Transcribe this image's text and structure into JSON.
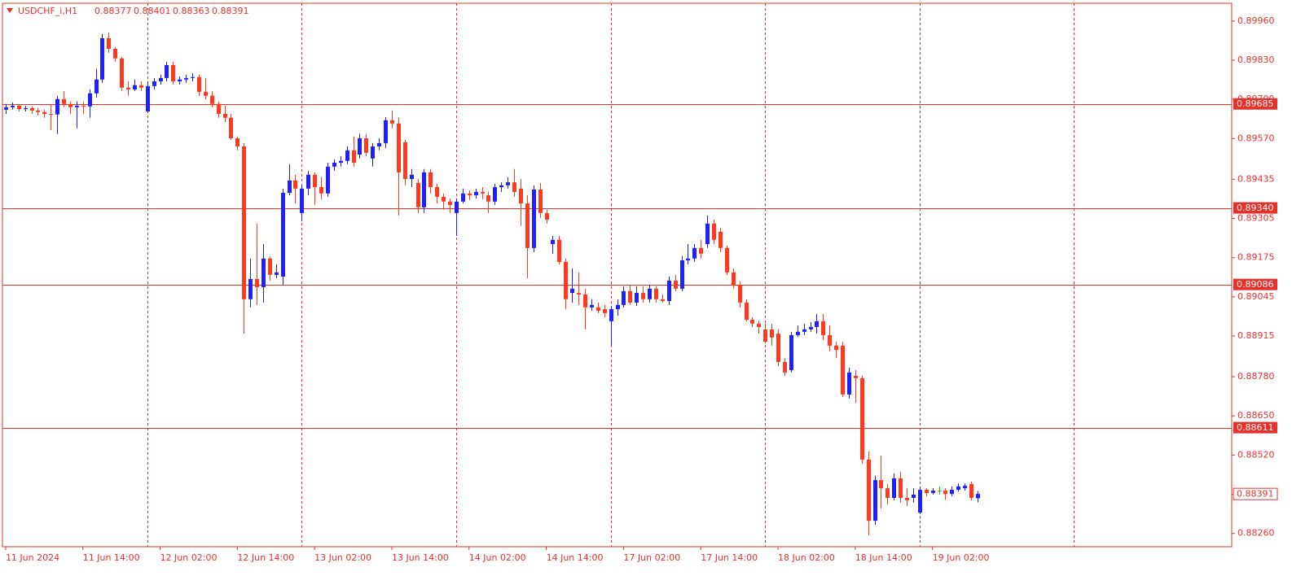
{
  "chart_data": {
    "type": "candlestick",
    "title": "USDCHF_i,H1",
    "up_color": "#1f1fff",
    "down_color": "#ff3a1f",
    "doji_color": "#1fbf1f",
    "level_color": "#e8302a",
    "axis_color": "#e8302a",
    "grid": true,
    "xlim": [
      -0.5,
      190.5
    ],
    "ylim": [
      0.88216,
      0.90019
    ],
    "xticks": [
      {
        "value": 0,
        "label": "11 Jun 2024"
      },
      {
        "value": 12,
        "label": "11 Jun 14:00"
      },
      {
        "value": 24,
        "label": "12 Jun 02:00"
      },
      {
        "value": 36,
        "label": "12 Jun 14:00"
      },
      {
        "value": 48,
        "label": "13 Jun 02:00"
      },
      {
        "value": 60,
        "label": "13 Jun 14:00"
      },
      {
        "value": 72,
        "label": "14 Jun 02:00"
      },
      {
        "value": 84,
        "label": "14 Jun 14:00"
      },
      {
        "value": 96,
        "label": "17 Jun 02:00"
      },
      {
        "value": 108,
        "label": "17 Jun 14:00"
      },
      {
        "value": 120,
        "label": "18 Jun 02:00"
      },
      {
        "value": 132,
        "label": "18 Jun 14:00"
      },
      {
        "value": 144,
        "label": "19 Jun 02:00"
      }
    ],
    "xgrid": [
      22,
      46,
      70,
      94,
      118,
      142,
      166
    ],
    "yticks": [
      {
        "value": 0.8996,
        "label": "0.89960"
      },
      {
        "value": 0.8983,
        "label": "0.89830"
      },
      {
        "value": 0.897,
        "label": "0.89700"
      },
      {
        "value": 0.8957,
        "label": "0.89570"
      },
      0.89435,
      0.89305,
      0.89175,
      0.89045,
      0.88915,
      {
        "value": 0.8878,
        "label": "0.88780"
      },
      {
        "value": 0.8865,
        "label": "0.88650"
      },
      {
        "value": 0.8852,
        "label": "0.88520"
      },
      {
        "value": 0.8839,
        "label": "0.88390"
      },
      {
        "value": 0.8826,
        "label": "0.88260"
      }
    ],
    "levels": [
      0.89685,
      {
        "value": 0.8934,
        "label": "0.89340"
      },
      0.89086,
      0.88611
    ],
    "ohlc": [
      [
        0.89666,
        0.89685,
        0.89652,
        0.89674
      ],
      [
        0.89674,
        0.8969,
        0.89666,
        0.89679
      ],
      [
        0.89679,
        0.89685,
        0.8966,
        0.89668
      ],
      [
        0.89668,
        0.89679,
        0.8966,
        0.89671
      ],
      [
        0.89671,
        0.89677,
        0.89652,
        0.89663
      ],
      [
        0.89663,
        0.89671,
        0.89647,
        0.89658
      ],
      [
        0.89658,
        0.89666,
        0.89639,
        0.89652
      ],
      [
        0.89652,
        0.89685,
        0.89598,
        0.8965
      ],
      [
        0.8965,
        0.89712,
        0.89585,
        0.89701
      ],
      [
        0.89701,
        0.89728,
        0.89674,
        0.89685
      ],
      [
        0.89685,
        0.89693,
        0.89652,
        0.89674
      ],
      [
        0.89674,
        0.89693,
        0.89604,
        0.89679
      ],
      [
        0.89679,
        0.89693,
        0.89652,
        0.89677
      ],
      [
        0.89677,
        0.89733,
        0.89639,
        0.8972
      ],
      [
        0.8972,
        0.89801,
        0.89706,
        0.89766
      ],
      [
        0.89766,
        0.89917,
        0.89755,
        0.89903
      ],
      [
        0.89903,
        0.89922,
        0.89855,
        0.89868
      ],
      [
        0.89868,
        0.89874,
        0.89825,
        0.89836
      ],
      [
        0.89836,
        0.89841,
        0.89728,
        0.89739
      ],
      [
        0.89739,
        0.8976,
        0.89712,
        0.89733
      ],
      [
        0.89733,
        0.89766,
        0.89728,
        0.89747
      ],
      [
        0.89747,
        0.8976,
        0.89728,
        0.89739
      ],
      [
        0.8966,
        0.8976,
        0.89658,
        0.89744
      ],
      [
        0.89744,
        0.89771,
        0.89733,
        0.8976
      ],
      [
        0.8976,
        0.89782,
        0.89749,
        0.89771
      ],
      [
        0.89771,
        0.89825,
        0.8976,
        0.89814
      ],
      [
        0.89814,
        0.89825,
        0.89749,
        0.8976
      ],
      [
        0.8976,
        0.89776,
        0.89749,
        0.89766
      ],
      [
        0.89766,
        0.89782,
        0.89755,
        0.89771
      ],
      [
        0.89771,
        0.89787,
        0.8976,
        0.89774
      ],
      [
        0.89774,
        0.89782,
        0.89712,
        0.89725
      ],
      [
        0.89725,
        0.89771,
        0.89701,
        0.89712
      ],
      [
        0.89712,
        0.89728,
        0.89674,
        0.89685
      ],
      [
        0.89685,
        0.89693,
        0.89639,
        0.89652
      ],
      [
        0.89652,
        0.89679,
        0.89625,
        0.89639
      ],
      [
        0.89639,
        0.89652,
        0.89566,
        0.89571
      ],
      [
        0.89571,
        0.89577,
        0.89531,
        0.89544
      ],
      [
        0.89544,
        0.89555,
        0.88923,
        0.89037
      ],
      [
        0.89037,
        0.89172,
        0.8901,
        0.89104
      ],
      [
        0.89104,
        0.89288,
        0.89018,
        0.89077
      ],
      [
        0.89077,
        0.8922,
        0.89026,
        0.89172
      ],
      [
        0.89172,
        0.8918,
        0.89099,
        0.89118
      ],
      [
        0.89118,
        0.89153,
        0.89107,
        0.89126
      ],
      [
        0.89112,
        0.89404,
        0.89085,
        0.8939
      ],
      [
        0.8939,
        0.89485,
        0.89382,
        0.89431
      ],
      [
        0.89431,
        0.8945,
        0.89355,
        0.89404
      ],
      [
        0.89323,
        0.89415,
        0.89296,
        0.89404
      ],
      [
        0.89404,
        0.89463,
        0.89382,
        0.8945
      ],
      [
        0.8945,
        0.89458,
        0.8935,
        0.89409
      ],
      [
        0.89409,
        0.89442,
        0.89369,
        0.89388
      ],
      [
        0.89388,
        0.8949,
        0.89377,
        0.89477
      ],
      [
        0.89477,
        0.89501,
        0.89463,
        0.8949
      ],
      [
        0.8949,
        0.89512,
        0.89477,
        0.89496
      ],
      [
        0.89496,
        0.89544,
        0.89485,
        0.89531
      ],
      [
        0.89531,
        0.89577,
        0.89477,
        0.8949
      ],
      [
        0.89517,
        0.89585,
        0.89504,
        0.89571
      ],
      [
        0.89571,
        0.89585,
        0.89512,
        0.89523
      ],
      [
        0.89504,
        0.89555,
        0.89477,
        0.89544
      ],
      [
        0.89544,
        0.89571,
        0.89531,
        0.89555
      ],
      [
        0.89555,
        0.89641,
        0.89539,
        0.89631
      ],
      [
        0.89631,
        0.89663,
        0.89604,
        0.8962
      ],
      [
        0.8962,
        0.89639,
        0.89315,
        0.89458
      ],
      [
        0.89558,
        0.89566,
        0.89415,
        0.89436
      ],
      [
        0.89436,
        0.89469,
        0.89409,
        0.8945
      ],
      [
        0.89423,
        0.89436,
        0.89323,
        0.89342
      ],
      [
        0.89342,
        0.89469,
        0.89323,
        0.89458
      ],
      [
        0.89458,
        0.89469,
        0.89388,
        0.89409
      ],
      [
        0.89409,
        0.8942,
        0.89355,
        0.89377
      ],
      [
        0.89377,
        0.89388,
        0.89334,
        0.89361
      ],
      [
        0.89361,
        0.89371,
        0.89323,
        0.8935
      ],
      [
        0.89323,
        0.89371,
        0.89247,
        0.89361
      ],
      [
        0.89361,
        0.89404,
        0.89355,
        0.89388
      ],
      [
        0.89388,
        0.89398,
        0.89366,
        0.89382
      ],
      [
        0.89382,
        0.89404,
        0.89371,
        0.89393
      ],
      [
        0.89393,
        0.89409,
        0.89369,
        0.89388
      ],
      [
        0.89382,
        0.89393,
        0.89323,
        0.89361
      ],
      [
        0.89361,
        0.8942,
        0.8935,
        0.89409
      ],
      [
        0.89409,
        0.89425,
        0.89393,
        0.89415
      ],
      [
        0.89415,
        0.89442,
        0.89404,
        0.89425
      ],
      [
        0.89425,
        0.89469,
        0.89377,
        0.89393
      ],
      [
        0.89404,
        0.89436,
        0.8928,
        0.89355
      ],
      [
        0.89355,
        0.89382,
        0.89107,
        0.89207
      ],
      [
        0.89207,
        0.89415,
        0.89193,
        0.89401
      ],
      [
        0.89401,
        0.89423,
        0.89307,
        0.89323
      ],
      [
        0.89323,
        0.89334,
        0.89288,
        0.89301
      ],
      [
        0.8922,
        0.89247,
        0.89188,
        0.89234
      ],
      [
        0.89234,
        0.89247,
        0.89153,
        0.89161
      ],
      [
        0.89161,
        0.89172,
        0.89004,
        0.89037
      ],
      [
        0.89058,
        0.89139,
        0.89026,
        0.89072
      ],
      [
        0.89058,
        0.89126,
        0.89018,
        0.89053
      ],
      [
        0.89053,
        0.89072,
        0.88937,
        0.8901
      ],
      [
        0.8901,
        0.89037,
        0.88999,
        0.89018
      ],
      [
        0.8901,
        0.89026,
        0.88991,
        0.88999
      ],
      [
        0.89004,
        0.89018,
        0.88977,
        0.88991
      ],
      [
        0.88964,
        0.89015,
        0.88883,
        0.89004
      ],
      [
        0.89004,
        0.89037,
        0.88983,
        0.89018
      ],
      [
        0.89018,
        0.8908,
        0.8901,
        0.89064
      ],
      [
        0.89064,
        0.89085,
        0.89018,
        0.89026
      ],
      [
        0.89026,
        0.8908,
        0.89015,
        0.89058
      ],
      [
        0.89058,
        0.8908,
        0.89026,
        0.89037
      ],
      [
        0.89037,
        0.89085,
        0.89026,
        0.89072
      ],
      [
        0.89072,
        0.8908,
        0.89026,
        0.89037
      ],
      [
        0.89037,
        0.89053,
        0.89026,
        0.89031
      ],
      [
        0.89031,
        0.89112,
        0.89018,
        0.89099
      ],
      [
        0.89099,
        0.89118,
        0.89064,
        0.89072
      ],
      [
        0.89072,
        0.8918,
        0.89064,
        0.89166
      ],
      [
        0.89166,
        0.8922,
        0.89153,
        0.89172
      ],
      [
        0.89172,
        0.8922,
        0.89161,
        0.89207
      ],
      [
        0.89207,
        0.89234,
        0.89172,
        0.89188
      ],
      [
        0.8922,
        0.89315,
        0.89207,
        0.89288
      ],
      [
        0.89288,
        0.89301,
        0.8922,
        0.89234
      ],
      [
        0.89261,
        0.89274,
        0.89193,
        0.89207
      ],
      [
        0.89207,
        0.89215,
        0.89118,
        0.89126
      ],
      [
        0.89126,
        0.89139,
        0.89072,
        0.89085
      ],
      [
        0.89085,
        0.89096,
        0.8901,
        0.89026
      ],
      [
        0.89026,
        0.89037,
        0.88964,
        0.88969
      ],
      [
        0.88969,
        0.88977,
        0.88945,
        0.88956
      ],
      [
        0.88956,
        0.88966,
        0.88923,
        0.88945
      ],
      [
        0.88937,
        0.88956,
        0.88891,
        0.88896
      ],
      [
        0.88937,
        0.88956,
        0.88883,
        0.8891
      ],
      [
        0.88923,
        0.88937,
        0.88815,
        0.88829
      ],
      [
        0.88829,
        0.88842,
        0.88783,
        0.88794
      ],
      [
        0.88802,
        0.88929,
        0.88794,
        0.88918
      ],
      [
        0.88918,
        0.8895,
        0.88912,
        0.88929
      ],
      [
        0.88929,
        0.88956,
        0.88918,
        0.88937
      ],
      [
        0.88937,
        0.88961,
        0.88929,
        0.88945
      ],
      [
        0.88945,
        0.88988,
        0.88923,
        0.88964
      ],
      [
        0.88964,
        0.88988,
        0.88902,
        0.88918
      ],
      [
        0.88918,
        0.8895,
        0.88864,
        0.88883
      ],
      [
        0.88883,
        0.88896,
        0.88842,
        0.88869
      ],
      [
        0.88883,
        0.88896,
        0.88713,
        0.88721
      ],
      [
        0.88721,
        0.8881,
        0.88707,
        0.88794
      ],
      [
        0.88783,
        0.88802,
        0.88694,
        0.88775
      ],
      [
        0.88775,
        0.88783,
        0.88491,
        0.88505
      ],
      [
        0.88505,
        0.88532,
        0.88254,
        0.88302
      ],
      [
        0.88302,
        0.88451,
        0.88289,
        0.88437
      ],
      [
        0.88437,
        0.88518,
        0.88343,
        0.8841
      ],
      [
        0.8841,
        0.88424,
        0.88356,
        0.88378
      ],
      [
        0.88378,
        0.88459,
        0.8837,
        0.88443
      ],
      [
        0.88443,
        0.88464,
        0.88362,
        0.88378
      ],
      [
        0.88378,
        0.8841,
        0.88351,
        0.8837
      ],
      [
        0.88378,
        0.8841,
        0.88362,
        0.88389
      ],
      [
        0.88329,
        0.88416,
        0.88324,
        0.88405
      ],
      [
        0.88405,
        0.8841,
        0.88383,
        0.88394
      ],
      [
        0.88394,
        0.8841,
        0.88389,
        0.88402
      ],
      [
        0.88402,
        0.88416,
        0.88389,
        0.88402
      ],
      [
        0.88402,
        0.8841,
        0.88372,
        0.88391
      ],
      [
        0.88391,
        0.88416,
        0.88383,
        0.88405
      ],
      [
        0.88405,
        0.88426,
        0.88399,
        0.88416
      ],
      [
        0.8841,
        0.88426,
        0.88402,
        0.88418
      ],
      [
        0.88424,
        0.88432,
        0.8837,
        0.88378
      ],
      [
        0.88377,
        0.88401,
        0.88363,
        0.88391
      ]
    ]
  }
}
